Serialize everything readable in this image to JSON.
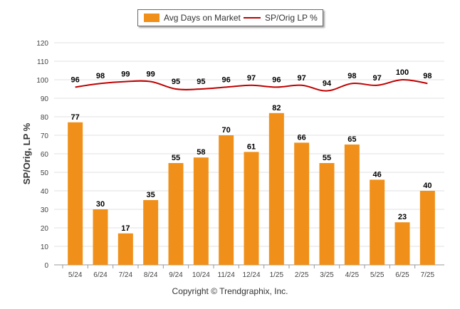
{
  "legend": {
    "bar_label": "Avg Days on Market",
    "line_label": "SP/Orig LP %"
  },
  "copyright": "Copyright © Trendgraphix, Inc.",
  "chart_data": {
    "type": "bar",
    "ylabel": "SP/Orig, LP %",
    "ylim": [
      0,
      120
    ],
    "yticks": [
      0,
      10,
      20,
      30,
      40,
      50,
      60,
      70,
      80,
      90,
      100,
      110,
      120
    ],
    "categories": [
      "5/24",
      "6/24",
      "7/24",
      "8/24",
      "9/24",
      "10/24",
      "11/24",
      "12/24",
      "1/25",
      "2/25",
      "3/25",
      "4/25",
      "5/25",
      "6/25",
      "7/25"
    ],
    "series": [
      {
        "name": "Avg Days on Market",
        "type": "bar",
        "color": "#f0901a",
        "values": [
          77,
          30,
          17,
          35,
          55,
          58,
          70,
          61,
          82,
          66,
          55,
          65,
          46,
          23,
          40
        ]
      },
      {
        "name": "SP/Orig LP %",
        "type": "line",
        "color": "#c00000",
        "values": [
          96,
          98,
          99,
          99,
          95,
          95,
          96,
          97,
          96,
          97,
          94,
          98,
          97,
          100,
          98
        ]
      }
    ],
    "grid": true
  }
}
